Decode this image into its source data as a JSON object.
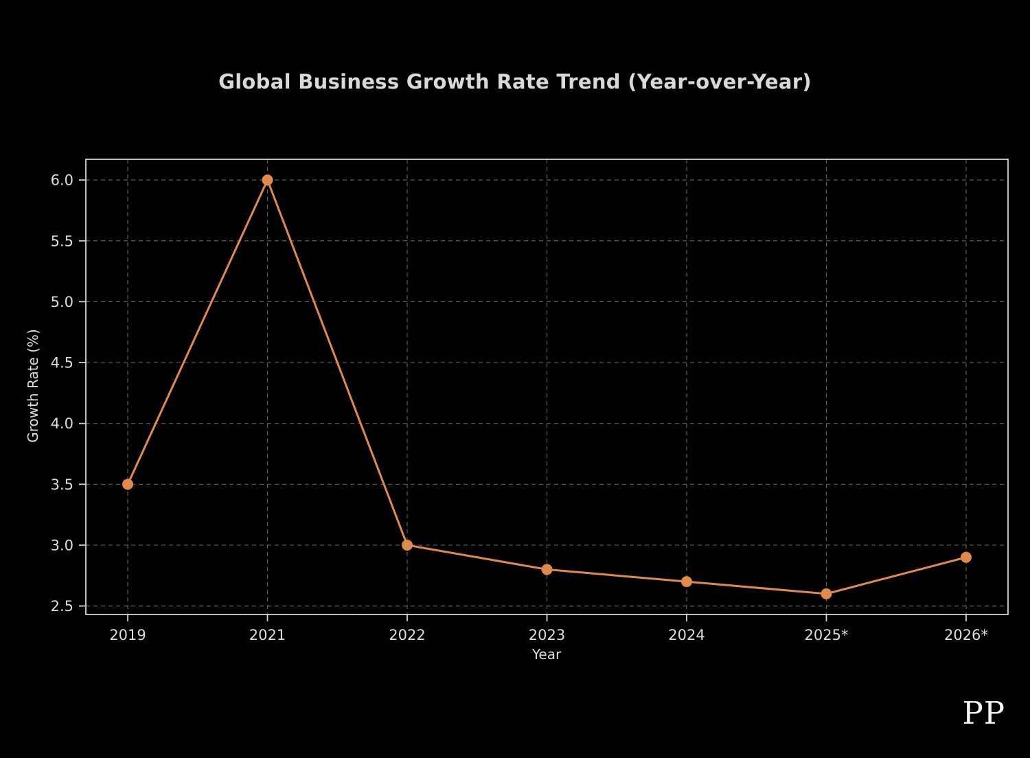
{
  "watermark": {
    "text": "PP"
  },
  "chart_data": {
    "type": "line",
    "title": "Global Business Growth Rate Trend (Year-over-Year)",
    "xlabel": "Year",
    "ylabel": "Growth Rate (%)",
    "categories": [
      "2019",
      "2021",
      "2022",
      "2023",
      "2024",
      "2025*",
      "2026*"
    ],
    "series": [
      {
        "name": "Growth Rate",
        "values": [
          3.5,
          6.0,
          3.0,
          2.8,
          2.7,
          2.6,
          2.9
        ]
      }
    ],
    "yticks": [
      2.5,
      3.0,
      3.5,
      4.0,
      4.5,
      5.0,
      5.5,
      6.0
    ],
    "ylim": [
      2.43,
      6.17
    ],
    "xlim": [
      -0.3,
      6.3
    ],
    "grid": true,
    "grid_style": "dashed",
    "legend": false,
    "line_color": "#e08a4b",
    "marker": "circle",
    "background_color": "#000000",
    "text_color": "#dcdcdc",
    "spine_color": "#d4d4d4",
    "grid_color": "#5f5f5f"
  }
}
